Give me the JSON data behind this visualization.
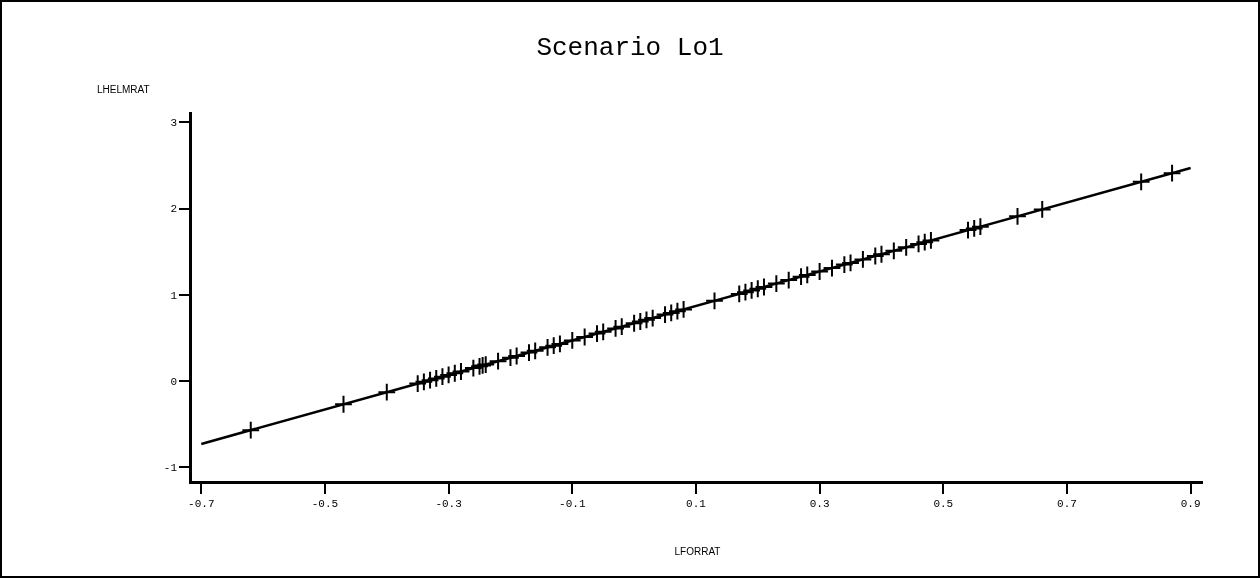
{
  "chart_data": {
    "type": "scatter",
    "title": "Scenario Lo1",
    "xlabel": "LFORRAT",
    "ylabel": "LHELMRAT",
    "grid": false,
    "xlim": [
      -0.715,
      0.92
    ],
    "ylim": [
      -1.16,
      3.12
    ],
    "xticks": [
      -0.7,
      -0.5,
      -0.3,
      -0.1,
      0.1,
      0.3,
      0.5,
      0.7,
      0.9
    ],
    "yticks": [
      -1,
      0,
      1,
      2,
      3
    ],
    "series": [
      {
        "marker": "cross",
        "color": "#000000",
        "x": [
          -0.62,
          -0.47,
          -0.4,
          -0.35,
          -0.34,
          -0.33,
          -0.32,
          -0.31,
          -0.3,
          -0.29,
          -0.28,
          -0.26,
          -0.25,
          -0.245,
          -0.24,
          -0.22,
          -0.2,
          -0.19,
          -0.17,
          -0.16,
          -0.14,
          -0.13,
          -0.12,
          -0.1,
          -0.08,
          -0.06,
          -0.05,
          -0.03,
          -0.02,
          0,
          0.01,
          0.02,
          0.03,
          0.05,
          0.06,
          0.07,
          0.08,
          0.13,
          0.17,
          0.18,
          0.19,
          0.2,
          0.21,
          0.23,
          0.25,
          0.27,
          0.28,
          0.3,
          0.32,
          0.34,
          0.35,
          0.37,
          0.39,
          0.4,
          0.42,
          0.44,
          0.46,
          0.47,
          0.48,
          0.54,
          0.55,
          0.56,
          0.62,
          0.66,
          0.82,
          0.87
        ],
        "values": [
          -0.57,
          -0.27,
          -0.13,
          -0.03,
          -0.01,
          0.01,
          0.03,
          0.05,
          0.07,
          0.09,
          0.11,
          0.15,
          0.17,
          0.18,
          0.19,
          0.23,
          0.27,
          0.29,
          0.33,
          0.35,
          0.39,
          0.41,
          0.43,
          0.47,
          0.51,
          0.55,
          0.57,
          0.61,
          0.63,
          0.67,
          0.69,
          0.71,
          0.73,
          0.77,
          0.79,
          0.81,
          0.83,
          0.93,
          1.01,
          1.03,
          1.05,
          1.07,
          1.09,
          1.13,
          1.17,
          1.21,
          1.23,
          1.27,
          1.31,
          1.35,
          1.37,
          1.41,
          1.45,
          1.47,
          1.51,
          1.55,
          1.59,
          1.61,
          1.63,
          1.75,
          1.77,
          1.79,
          1.91,
          1.99,
          2.31,
          2.41
        ]
      },
      {
        "type": "line",
        "color": "#000000",
        "line_style": "solid",
        "x": [
          -0.7,
          0.9
        ],
        "values": [
          -0.73,
          2.47
        ]
      }
    ]
  }
}
